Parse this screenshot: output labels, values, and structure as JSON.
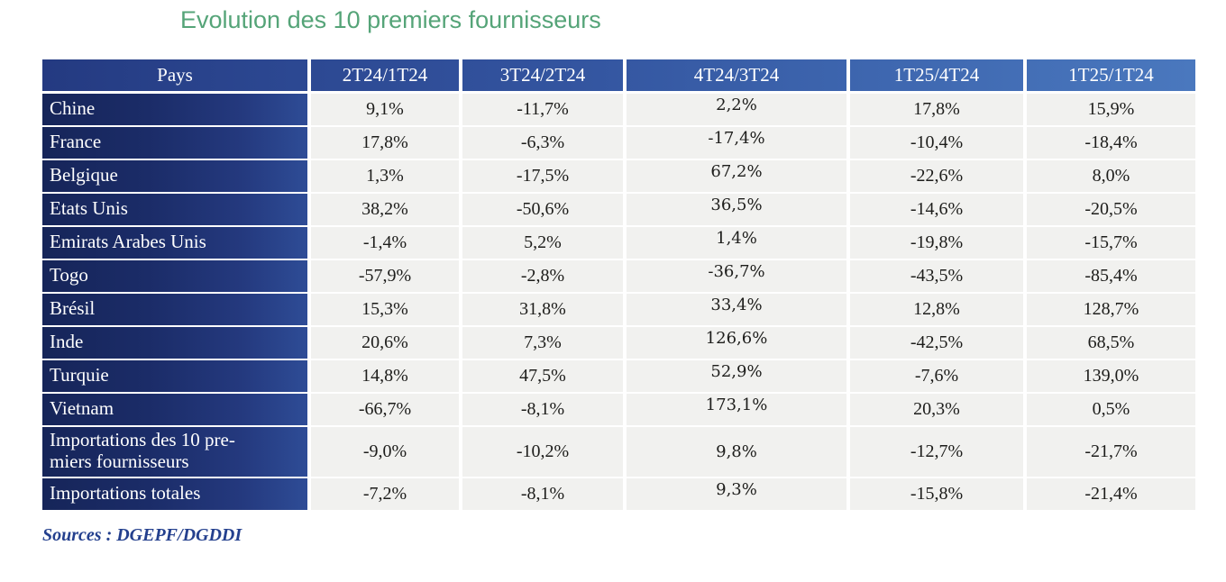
{
  "title": "Evolution des 10 premiers fournisseurs",
  "source_note": "Sources : DGEPF/DGDDI",
  "colors": {
    "title_green": "#55a478",
    "header_gradient_start": "#243a81",
    "header_gradient_end": "#4a78be",
    "label_gradient_start": "#162559",
    "label_gradient_end": "#2e4c96",
    "value_cell_bg": "#f1f1ef",
    "source_blue": "#24408e"
  },
  "chart_data": {
    "type": "table",
    "title": "Evolution des 10 premiers fournisseurs",
    "columns": [
      "Pays",
      "2T24/1T24",
      "3T24/2T24",
      "4T24/3T24",
      "1T25/4T24",
      "1T25/1T24"
    ],
    "rows": [
      {
        "label": "Chine",
        "values": [
          "9,1%",
          "-11,7%",
          "2,2%",
          "17,8%",
          "15,9%"
        ]
      },
      {
        "label": "France",
        "values": [
          "17,8%",
          "-6,3%",
          "-17,4%",
          "-10,4%",
          "-18,4%"
        ]
      },
      {
        "label": "Belgique",
        "values": [
          "1,3%",
          "-17,5%",
          "67,2%",
          "-22,6%",
          "8,0%"
        ]
      },
      {
        "label": "Etats Unis",
        "values": [
          "38,2%",
          "-50,6%",
          "36,5%",
          "-14,6%",
          "-20,5%"
        ]
      },
      {
        "label": "Emirats Arabes Unis",
        "values": [
          "-1,4%",
          "5,2%",
          "1,4%",
          "-19,8%",
          "-15,7%"
        ]
      },
      {
        "label": "Togo",
        "values": [
          "-57,9%",
          "-2,8%",
          "-36,7%",
          "-43,5%",
          "-85,4%"
        ]
      },
      {
        "label": "Brésil",
        "values": [
          "15,3%",
          "31,8%",
          "33,4%",
          "12,8%",
          "128,7%"
        ]
      },
      {
        "label": "Inde",
        "values": [
          "20,6%",
          "7,3%",
          "126,6%",
          "-42,5%",
          "68,5%"
        ]
      },
      {
        "label": "Turquie",
        "values": [
          "14,8%",
          "47,5%",
          "52,9%",
          "-7,6%",
          "139,0%"
        ]
      },
      {
        "label": "Vietnam",
        "values": [
          "-66,7%",
          "-8,1%",
          "173,1%",
          "20,3%",
          "0,5%"
        ]
      },
      {
        "label": "Importations des 10 pre-\nmiers fournisseurs",
        "values": [
          "-9,0%",
          "-10,2%",
          "9,8%",
          "-12,7%",
          "-21,7%"
        ]
      },
      {
        "label": "Importations totales",
        "values": [
          "-7,2%",
          "-8,1%",
          "9,3%",
          "-15,8%",
          "-21,4%"
        ]
      }
    ]
  }
}
